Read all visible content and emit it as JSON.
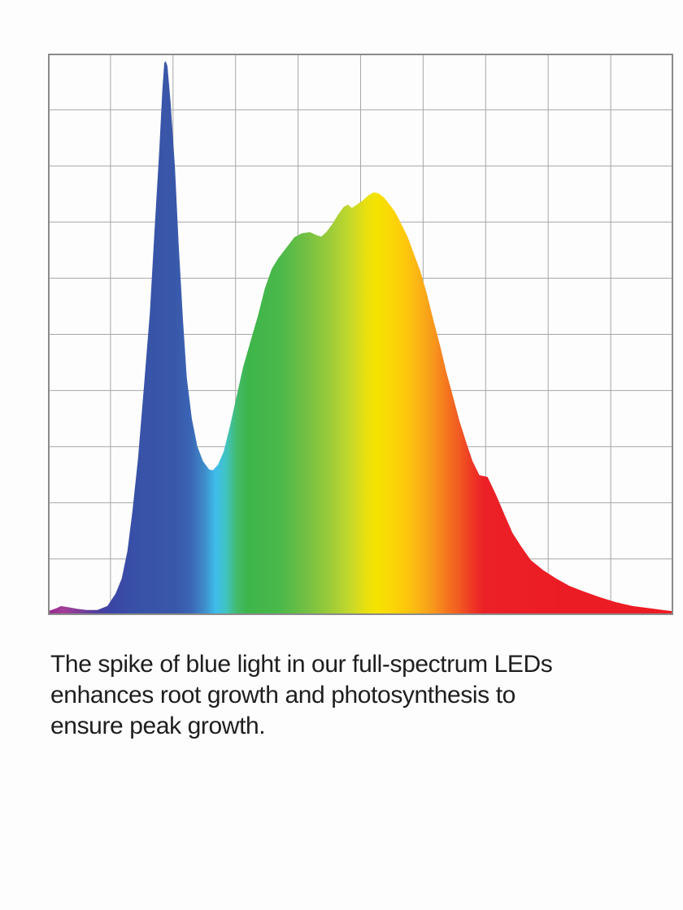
{
  "caption": {
    "full_text": "The spike of blue light in our full-spectrum LEDs enhances root growth and photosynthesis to ensure peak growth.",
    "lines": [
      "The spike of blue light in our full-spectrum LEDs",
      "enhances root growth and photosynthesis to",
      "ensure peak growth."
    ],
    "text_color": "#1e1e1e"
  },
  "chart_data": {
    "type": "area",
    "title": "",
    "xlabel": "",
    "ylabel": "",
    "description": "Full-spectrum LED light output: relative intensity vs wavelength, filled with a rainbow spectrum gradient; sharp blue spike near the left and a broad green-yellow-red hump peaking right of center",
    "grid": {
      "columns": 10,
      "rows": 10,
      "grid_color": "#a6a6a6",
      "border_color": "#8b8b8b"
    },
    "axis_ranges": {
      "x_fraction": [
        0,
        1
      ],
      "intensity_fraction": [
        0,
        1
      ]
    },
    "legend": "none",
    "points": [
      [
        0.0,
        0.007
      ],
      [
        0.013,
        0.012
      ],
      [
        0.021,
        0.016
      ],
      [
        0.032,
        0.014
      ],
      [
        0.047,
        0.011
      ],
      [
        0.062,
        0.009
      ],
      [
        0.079,
        0.009
      ],
      [
        0.095,
        0.016
      ],
      [
        0.108,
        0.038
      ],
      [
        0.118,
        0.065
      ],
      [
        0.127,
        0.114
      ],
      [
        0.135,
        0.184
      ],
      [
        0.144,
        0.278
      ],
      [
        0.153,
        0.401
      ],
      [
        0.163,
        0.538
      ],
      [
        0.17,
        0.676
      ],
      [
        0.178,
        0.828
      ],
      [
        0.183,
        0.936
      ],
      [
        0.186,
        0.983
      ],
      [
        0.188,
        0.987
      ],
      [
        0.191,
        0.978
      ],
      [
        0.196,
        0.915
      ],
      [
        0.203,
        0.799
      ],
      [
        0.209,
        0.661
      ],
      [
        0.216,
        0.524
      ],
      [
        0.222,
        0.423
      ],
      [
        0.23,
        0.35
      ],
      [
        0.239,
        0.3
      ],
      [
        0.248,
        0.274
      ],
      [
        0.258,
        0.259
      ],
      [
        0.264,
        0.258
      ],
      [
        0.272,
        0.268
      ],
      [
        0.281,
        0.291
      ],
      [
        0.291,
        0.336
      ],
      [
        0.302,
        0.391
      ],
      [
        0.312,
        0.441
      ],
      [
        0.324,
        0.488
      ],
      [
        0.336,
        0.534
      ],
      [
        0.347,
        0.582
      ],
      [
        0.358,
        0.617
      ],
      [
        0.368,
        0.635
      ],
      [
        0.381,
        0.654
      ],
      [
        0.394,
        0.673
      ],
      [
        0.406,
        0.68
      ],
      [
        0.419,
        0.682
      ],
      [
        0.429,
        0.677
      ],
      [
        0.437,
        0.674
      ],
      [
        0.445,
        0.682
      ],
      [
        0.454,
        0.695
      ],
      [
        0.464,
        0.713
      ],
      [
        0.473,
        0.727
      ],
      [
        0.48,
        0.731
      ],
      [
        0.486,
        0.725
      ],
      [
        0.494,
        0.731
      ],
      [
        0.503,
        0.738
      ],
      [
        0.512,
        0.747
      ],
      [
        0.521,
        0.753
      ],
      [
        0.529,
        0.751
      ],
      [
        0.537,
        0.744
      ],
      [
        0.546,
        0.732
      ],
      [
        0.555,
        0.718
      ],
      [
        0.564,
        0.699
      ],
      [
        0.575,
        0.674
      ],
      [
        0.585,
        0.644
      ],
      [
        0.596,
        0.611
      ],
      [
        0.606,
        0.572
      ],
      [
        0.616,
        0.527
      ],
      [
        0.627,
        0.48
      ],
      [
        0.637,
        0.433
      ],
      [
        0.648,
        0.388
      ],
      [
        0.658,
        0.346
      ],
      [
        0.669,
        0.307
      ],
      [
        0.679,
        0.274
      ],
      [
        0.69,
        0.249
      ],
      [
        0.703,
        0.246
      ],
      [
        0.717,
        0.213
      ],
      [
        0.73,
        0.179
      ],
      [
        0.743,
        0.146
      ],
      [
        0.757,
        0.122
      ],
      [
        0.772,
        0.098
      ],
      [
        0.792,
        0.08
      ],
      [
        0.813,
        0.065
      ],
      [
        0.834,
        0.052
      ],
      [
        0.857,
        0.042
      ],
      [
        0.882,
        0.032
      ],
      [
        0.908,
        0.023
      ],
      [
        0.935,
        0.016
      ],
      [
        0.964,
        0.012
      ],
      [
        0.983,
        0.009
      ],
      [
        1.0,
        0.007
      ]
    ],
    "gradient_stops": [
      {
        "offset": 0.0,
        "color": "#93278f"
      },
      {
        "offset": 0.025,
        "color": "#a43e97"
      },
      {
        "offset": 0.053,
        "color": "#7b3d98"
      },
      {
        "offset": 0.077,
        "color": "#4f3d9e"
      },
      {
        "offset": 0.099,
        "color": "#3b45a5"
      },
      {
        "offset": 0.144,
        "color": "#3852a7"
      },
      {
        "offset": 0.203,
        "color": "#3957a9"
      },
      {
        "offset": 0.229,
        "color": "#3b66b5"
      },
      {
        "offset": 0.251,
        "color": "#3e8ecb"
      },
      {
        "offset": 0.268,
        "color": "#3ebdec"
      },
      {
        "offset": 0.285,
        "color": "#41c3c1"
      },
      {
        "offset": 0.303,
        "color": "#43ba68"
      },
      {
        "offset": 0.32,
        "color": "#3db54a"
      },
      {
        "offset": 0.372,
        "color": "#4bb84a"
      },
      {
        "offset": 0.411,
        "color": "#71bf44"
      },
      {
        "offset": 0.45,
        "color": "#9bcb39"
      },
      {
        "offset": 0.482,
        "color": "#c3d82c"
      },
      {
        "offset": 0.508,
        "color": "#e8e011"
      },
      {
        "offset": 0.524,
        "color": "#f4e300"
      },
      {
        "offset": 0.547,
        "color": "#fbd807"
      },
      {
        "offset": 0.573,
        "color": "#fdc70c"
      },
      {
        "offset": 0.599,
        "color": "#faad17"
      },
      {
        "offset": 0.619,
        "color": "#f7941d"
      },
      {
        "offset": 0.641,
        "color": "#f4701f"
      },
      {
        "offset": 0.658,
        "color": "#f15a22"
      },
      {
        "offset": 0.678,
        "color": "#ee3824"
      },
      {
        "offset": 0.697,
        "color": "#ec2027"
      },
      {
        "offset": 0.833,
        "color": "#ec1c24"
      },
      {
        "offset": 1.0,
        "color": "#ec1c24"
      }
    ]
  }
}
